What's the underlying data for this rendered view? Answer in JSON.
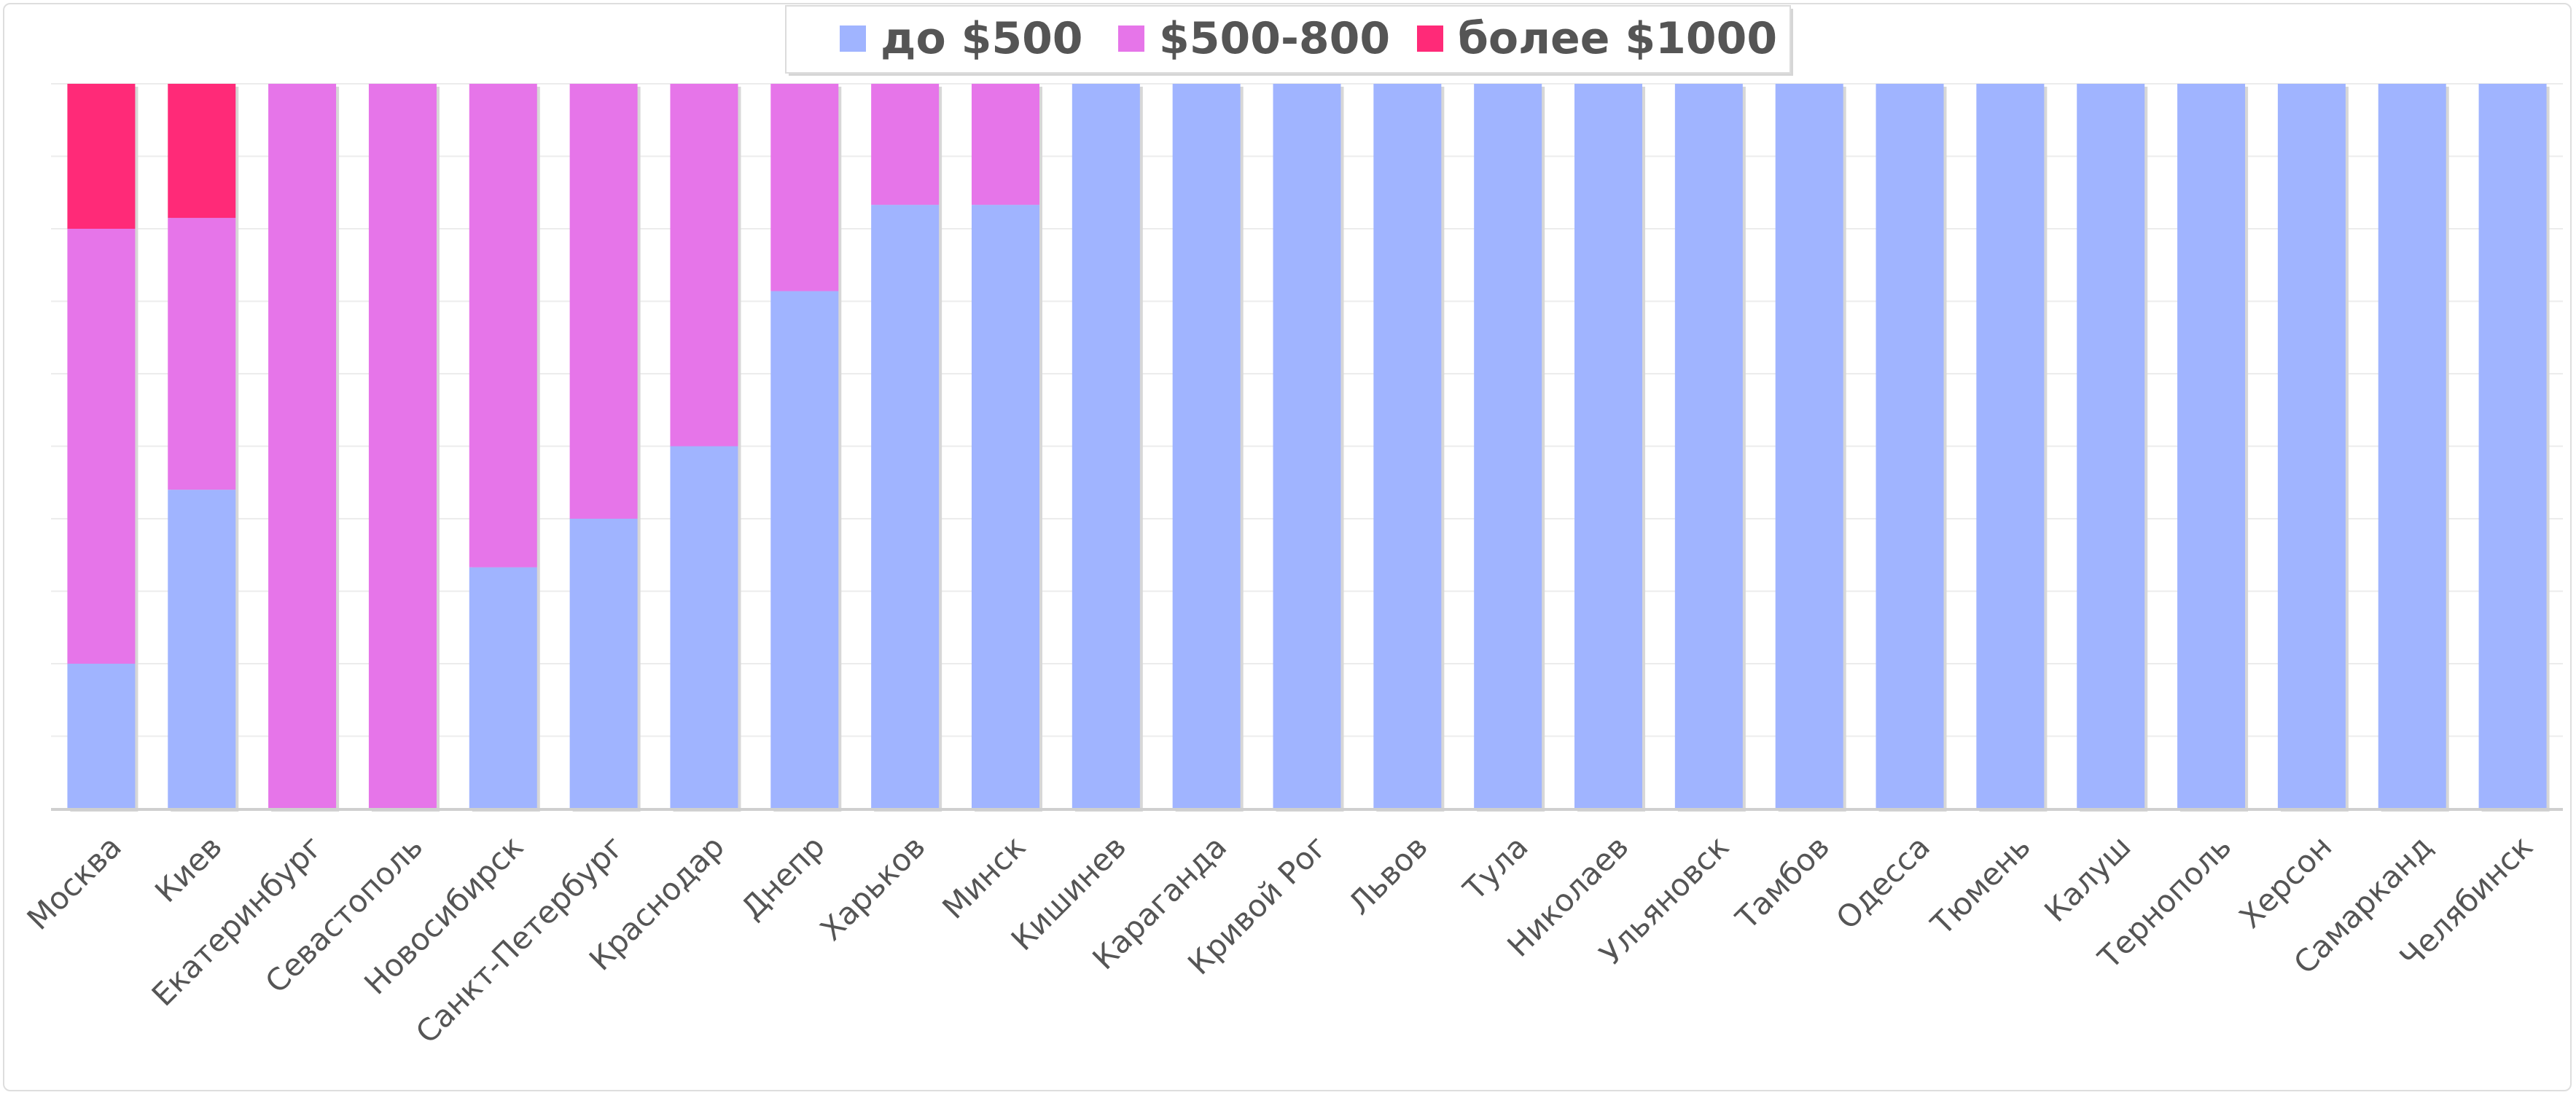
{
  "chart_data": {
    "type": "bar",
    "stacked": true,
    "normalized_percent": true,
    "title": "",
    "xlabel": "",
    "ylabel": "",
    "ylim": [
      0,
      100
    ],
    "grid": true,
    "legend_position": "top-center",
    "categories": [
      "Москва",
      "Киев",
      "Екатеринбург",
      "Севастополь",
      "Новосибирск",
      "Санкт-Петербург",
      "Краснодар",
      "Днепр",
      "Харьков",
      "Минск",
      "Кишинев",
      "Караганда",
      "Кривой Рог",
      "Львов",
      "Тула",
      "Николаев",
      "Ульяновск",
      "Тамбов",
      "Одесса",
      "Тюмень",
      "Калуш",
      "Тернополь",
      "Херсон",
      "Самарканд",
      "Челябинск"
    ],
    "series": [
      {
        "name": "до $500",
        "color": "#a0b4ff",
        "values": [
          20,
          44,
          0,
          0,
          33.3,
          40,
          50,
          71.4,
          83.3,
          83.3,
          100,
          100,
          100,
          100,
          100,
          100,
          100,
          100,
          100,
          100,
          100,
          100,
          100,
          100,
          100
        ]
      },
      {
        "name": "$500-800",
        "color": "#e675e9",
        "values": [
          60,
          37.5,
          100,
          100,
          66.7,
          60,
          50,
          28.6,
          16.7,
          16.7,
          0,
          0,
          0,
          0,
          0,
          0,
          0,
          0,
          0,
          0,
          0,
          0,
          0,
          0,
          0
        ]
      },
      {
        "name": "более $1000",
        "color": "#ff2a78",
        "values": [
          20,
          18.5,
          0,
          0,
          0,
          0,
          0,
          0,
          0,
          0,
          0,
          0,
          0,
          0,
          0,
          0,
          0,
          0,
          0,
          0,
          0,
          0,
          0,
          0,
          0
        ]
      }
    ]
  }
}
